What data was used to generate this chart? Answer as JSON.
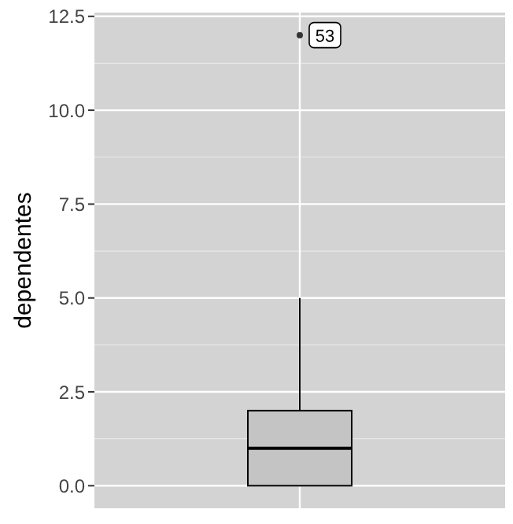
{
  "chart_data": {
    "type": "box",
    "ylabel": "dependentes",
    "categories": [
      null
    ],
    "boxes": [
      {
        "low": 0,
        "q1": 0,
        "median": 1,
        "q3": 2,
        "high": 5,
        "outliers": [
          12
        ]
      }
    ],
    "color": "#c4c4c4",
    "ylim": [
      -0.6,
      12.6
    ],
    "yticks": [
      {
        "value": 0,
        "label": "0.0"
      },
      {
        "value": 2.5,
        "label": "2.5"
      },
      {
        "value": 5,
        "label": "5.0"
      },
      {
        "value": 7.5,
        "label": "7.5"
      },
      {
        "value": 10,
        "label": "10.0"
      },
      {
        "value": 12.5,
        "label": "12.5"
      }
    ],
    "annotations": [
      {
        "text": "53",
        "y": 12
      }
    ],
    "grid": true,
    "tick_labels": "y"
  }
}
